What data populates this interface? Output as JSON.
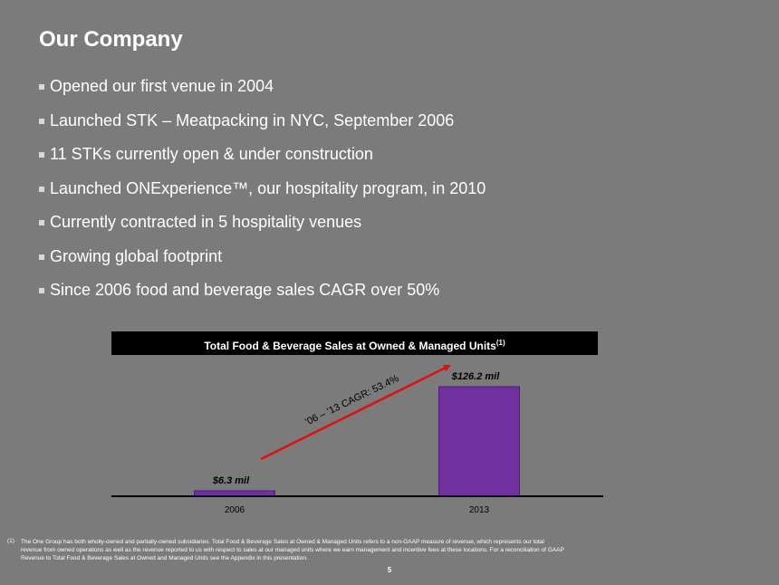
{
  "title": "Our Company",
  "bullets": [
    "Opened our first venue in 2004",
    "Launched STK – Meatpacking in NYC, September 2006",
    "11 STKs currently open & under construction",
    "Launched ONExperience™, our hospitality program, in 2010",
    "Currently contracted in 5 hospitality venues",
    "Growing global footprint",
    "Since 2006 food and beverage sales CAGR over 50%"
  ],
  "chart_data": {
    "type": "bar",
    "title": "Total Food & Beverage Sales at Owned & Managed Units",
    "title_superscript": "(1)",
    "categories": [
      "2006",
      "2013"
    ],
    "values": [
      6.3,
      126.2
    ],
    "data_labels": [
      "$6.3 mil",
      "$126.2 mil"
    ],
    "annotation": "’06 – ’13 CAGR: 53.4%",
    "bar_color": "#7030a0",
    "arrow_color": "#e01010",
    "ylim": [
      0,
      126.2
    ],
    "grid": false
  },
  "footnote": {
    "number": "(1)",
    "text": "The One Group has both wholly-owned and partially-owned subsidiaries. Total Food & Beverage Sales at Owned & Managed Units refers to a non-GAAP measure of revenue, which represents our total revenue from owned operations as well as the revenue reported to us with respect to sales at our managed units where we earn management and incentive fees at these locations. For a reconciliation of GAAP Revenue to Total Food & Beverage Sales at Owned and Managed Units see the Appendix in this presentation."
  },
  "page_number": "5"
}
